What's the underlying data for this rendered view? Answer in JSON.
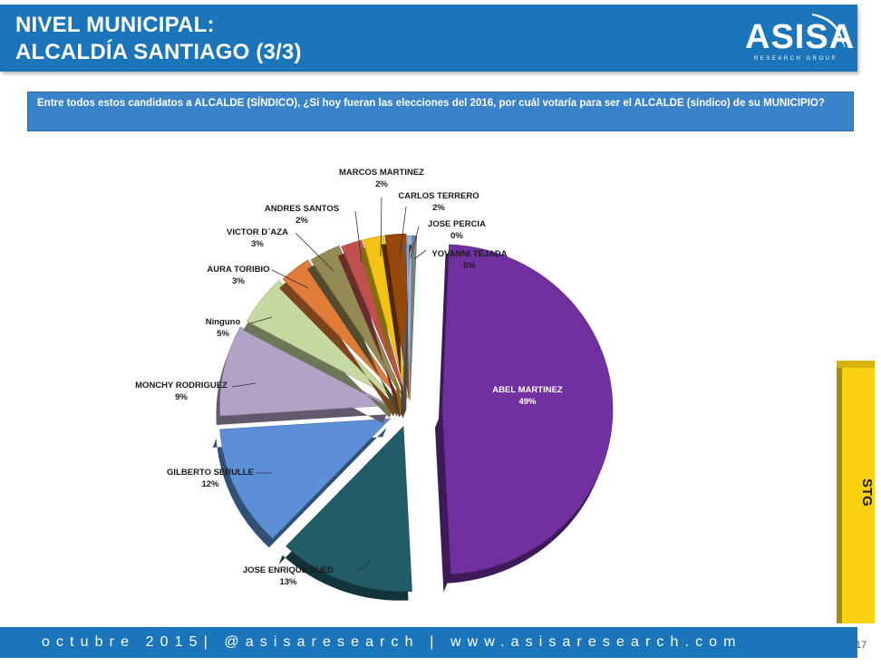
{
  "header": {
    "title_line1": "NIVEL MUNICIPAL:",
    "title_line2": "ALCALDÍA SANTIAGO (3/3)",
    "logo_text": "ASISA",
    "logo_subtext": "RESEARCH GROUP"
  },
  "question": "Entre todos estos candidatos a ALCALDE (SÍNDICO), ¿Si hoy fueran las elecciones del 2016, por cuál votaría para ser el ALCALDE (síndico) de su MUNICIPIO?",
  "side_tab": {
    "label": "STG"
  },
  "footer": {
    "text": "octubre 2015| @asisaresearch | www.asisaresearch.com"
  },
  "page_number": "17",
  "colors": {
    "header_blue": "#1b75bb",
    "question_blue": "#3a83c8",
    "tab_yellow": "#f8d210"
  },
  "chart_data": {
    "type": "pie",
    "title": "",
    "slices": [
      {
        "label": "ABEL MARTINEZ",
        "pct_label": "49%",
        "value": 49,
        "color": "#7030a0"
      },
      {
        "label": "JOSE ENRIQUE SUED",
        "pct_label": "13%",
        "value": 13,
        "color": "#215c68"
      },
      {
        "label": "GILBERTO SERULLE",
        "pct_label": "12%",
        "value": 12,
        "color": "#5b8fd6"
      },
      {
        "label": "MONCHY RODRIGUEZ",
        "pct_label": "9%",
        "value": 9,
        "color": "#b2a2c7"
      },
      {
        "label": "Ninguno",
        "pct_label": "5%",
        "value": 5,
        "color": "#c5d9a0"
      },
      {
        "label": "AURA TORIBIO",
        "pct_label": "3%",
        "value": 3,
        "color": "#e07b39"
      },
      {
        "label": "VICTOR  D´AZA",
        "pct_label": "3%",
        "value": 3,
        "color": "#948a54"
      },
      {
        "label": "ANDRES SANTOS",
        "pct_label": "2%",
        "value": 2,
        "color": "#c0504d"
      },
      {
        "label": "MARCOS  MARTINEZ",
        "pct_label": "2%",
        "value": 2,
        "color": "#f2c314"
      },
      {
        "label": "CARLOS TERRERO",
        "pct_label": "2%",
        "value": 2,
        "color": "#974706"
      },
      {
        "label": "JOSE PERCIA",
        "pct_label": "0%",
        "value": 0.5,
        "color": "#8db3e2"
      },
      {
        "label": "YOVANNI TEJADA",
        "pct_label": "0%",
        "value": 0.4,
        "color": "#7f7f7f"
      }
    ]
  }
}
